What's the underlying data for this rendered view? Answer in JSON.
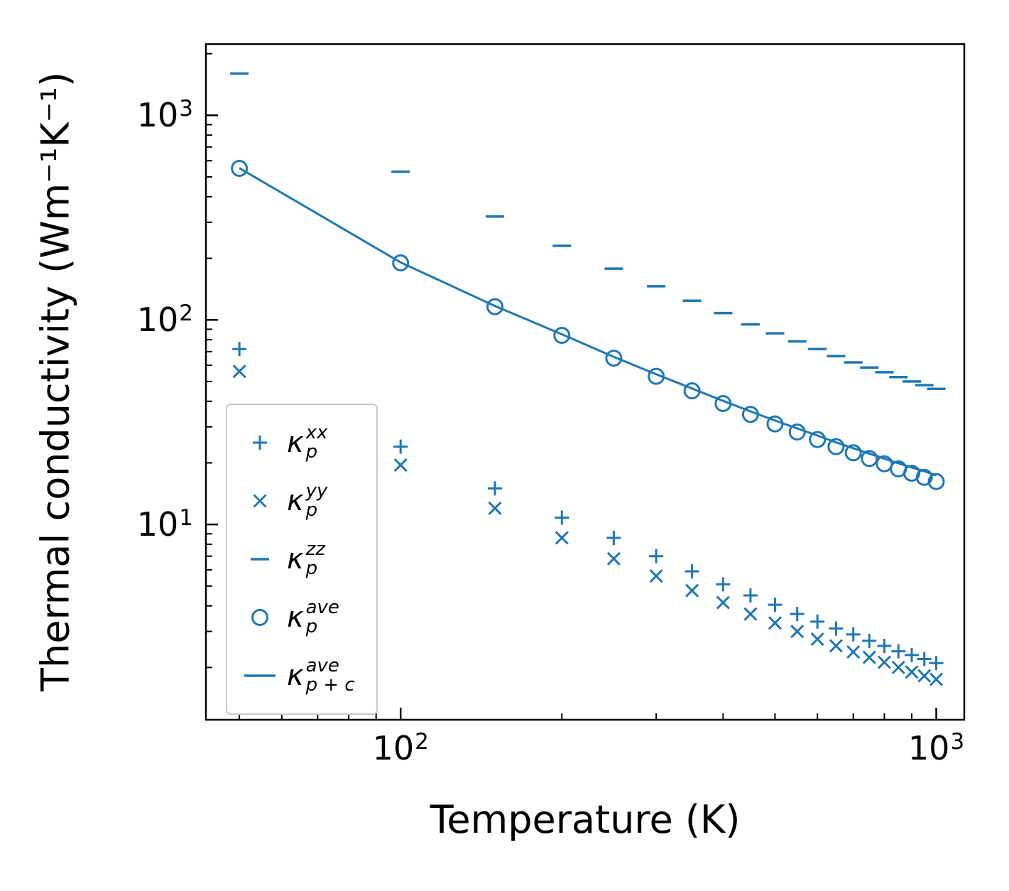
{
  "chart_data": {
    "type": "scatter",
    "title": "",
    "xlabel": "Temperature (K)",
    "ylabel": "Thermal conductivity (Wm⁻¹K⁻¹)",
    "xscale": "log",
    "yscale": "log",
    "xlim": [
      43.3,
      1128
    ],
    "ylim": [
      1.11,
      2230
    ],
    "grid": false,
    "legend_position": "center left",
    "color": "#1f77b4",
    "x": [
      50,
      100,
      150,
      200,
      250,
      300,
      350,
      400,
      450,
      500,
      550,
      600,
      650,
      700,
      750,
      800,
      850,
      900,
      950,
      1000
    ],
    "series": [
      {
        "name": "kappa_p_xx",
        "marker": "plus",
        "legend": {
          "sym": "κ",
          "sub": "p",
          "sup": "xx"
        },
        "values": [
          72,
          24,
          15,
          10.8,
          8.6,
          7.0,
          5.9,
          5.1,
          4.5,
          4.05,
          3.65,
          3.35,
          3.1,
          2.9,
          2.7,
          2.55,
          2.4,
          2.3,
          2.2,
          2.1
        ]
      },
      {
        "name": "kappa_p_yy",
        "marker": "x",
        "legend": {
          "sym": "κ",
          "sub": "p",
          "sup": "yy"
        },
        "values": [
          56,
          19.5,
          12.0,
          8.6,
          6.8,
          5.6,
          4.75,
          4.15,
          3.65,
          3.3,
          3.0,
          2.75,
          2.55,
          2.38,
          2.24,
          2.12,
          2.0,
          1.9,
          1.82,
          1.75
        ]
      },
      {
        "name": "kappa_p_zz",
        "marker": "hline",
        "legend": {
          "sym": "κ",
          "sub": "p",
          "sup": "zz"
        },
        "values": [
          1600,
          530,
          320,
          230,
          178,
          146,
          124,
          108,
          95,
          86,
          78.5,
          72,
          66.5,
          62,
          58.5,
          55.5,
          52.5,
          50,
          48,
          46
        ]
      },
      {
        "name": "kappa_p_ave",
        "marker": "circle",
        "legend": {
          "sym": "κ",
          "sub": "p",
          "sup": "ave"
        },
        "values": [
          550,
          190,
          116,
          84,
          65,
          53,
          45,
          39,
          34.5,
          31,
          28.3,
          26,
          24,
          22.4,
          21,
          19.8,
          18.7,
          17.8,
          17,
          16.2
        ]
      },
      {
        "name": "kappa_p_plus_c_ave",
        "marker": "line",
        "legend": {
          "sym": "κ",
          "sub": "p + c",
          "sup": "ave"
        },
        "values": [
          552,
          191,
          117,
          85,
          66,
          54.2,
          46.2,
          40.2,
          35.7,
          32.2,
          29.5,
          27.2,
          25.2,
          23.6,
          22.2,
          21.0,
          19.9,
          19.0,
          18.2,
          17.4
        ]
      }
    ],
    "xticks": [
      {
        "value": 100,
        "base": "10",
        "exp": "2"
      },
      {
        "value": 1000,
        "base": "10",
        "exp": "3"
      }
    ],
    "yticks": [
      {
        "value": 10,
        "base": "10",
        "exp": "1"
      },
      {
        "value": 100,
        "base": "10",
        "exp": "2"
      },
      {
        "value": 1000,
        "base": "10",
        "exp": "3"
      }
    ],
    "xticks_minor": [
      50,
      60,
      70,
      80,
      90,
      200,
      300,
      400,
      500,
      600,
      700,
      800,
      900
    ],
    "yticks_minor": [
      2,
      3,
      4,
      5,
      6,
      7,
      8,
      9,
      20,
      30,
      40,
      50,
      60,
      70,
      80,
      90,
      200,
      300,
      400,
      500,
      600,
      700,
      800,
      900,
      2000
    ]
  }
}
